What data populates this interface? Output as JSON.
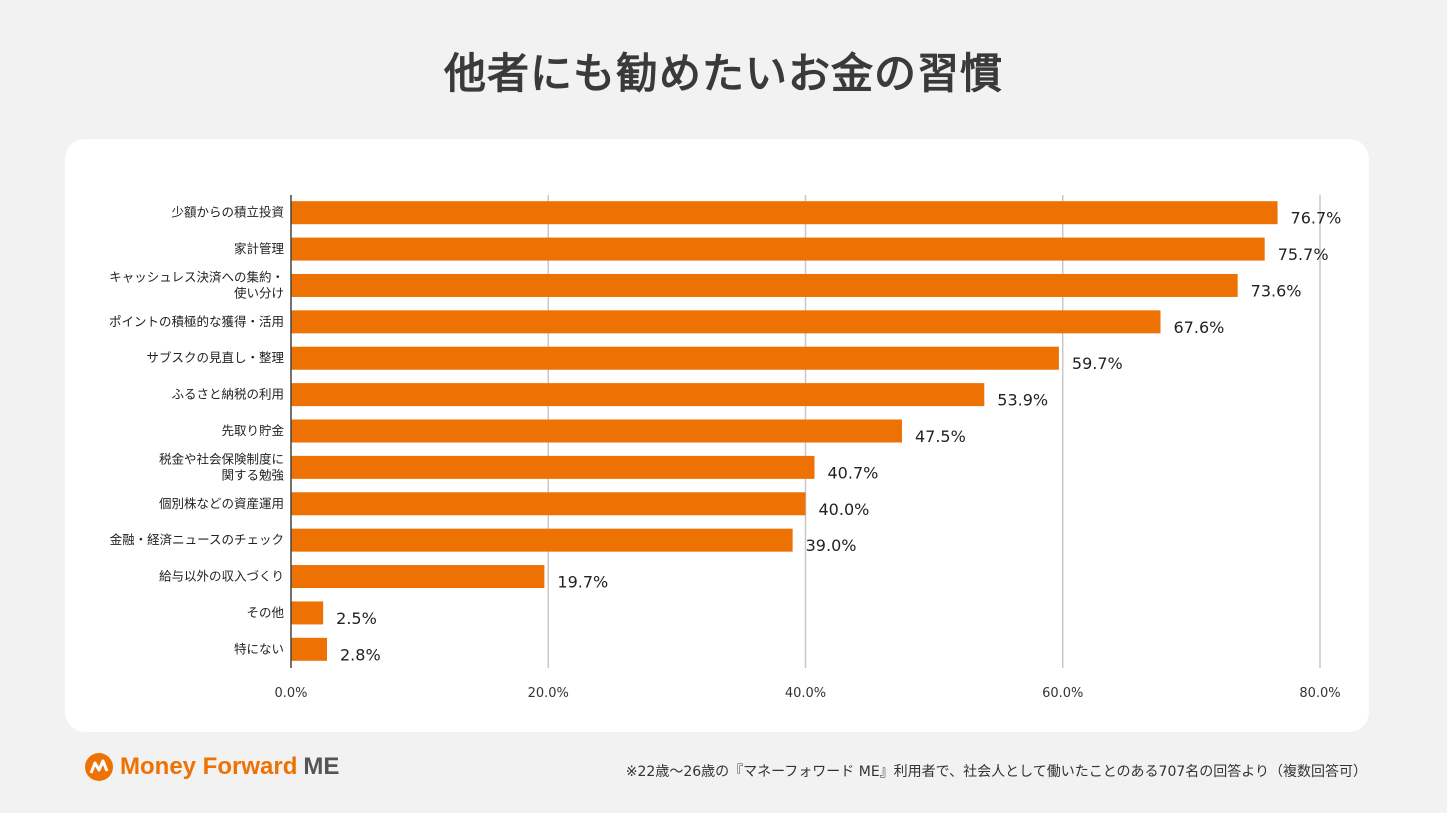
{
  "title": "他者にも勧めたいお金の習慣",
  "chart_data": {
    "type": "bar",
    "orientation": "horizontal",
    "categories": [
      "少額からの積立投資",
      "家計管理",
      "キャッシュレス決済への集約・\n使い分け",
      "ポイントの積極的な獲得・活用",
      "サブスクの見直し・整理",
      "ふるさと納税の利用",
      "先取り貯金",
      "税金や社会保険制度に\n関する勉強",
      "個別株などの資産運用",
      "金融・経済ニュースのチェック",
      "給与以外の収入づくり",
      "その他",
      "特にない"
    ],
    "values": [
      76.7,
      75.7,
      73.6,
      67.6,
      59.7,
      53.9,
      47.5,
      40.7,
      40.0,
      39.0,
      19.7,
      2.5,
      2.8
    ],
    "data_labels": [
      "76.7%",
      "75.7%",
      "73.6%",
      "67.6%",
      "59.7%",
      "53.9%",
      "47.5%",
      "40.7%",
      "40.0%",
      "39.0%",
      "19.7%",
      "2.5%",
      "2.8%"
    ],
    "xlim": [
      0,
      80
    ],
    "x_ticks": [
      "0.0%",
      "20.0%",
      "40.0%",
      "60.0%",
      "80.0%"
    ],
    "grid": "vertical",
    "bar_color": "#ee7203"
  },
  "footer": {
    "logo_brand": "Money Forward",
    "logo_suffix": "ME",
    "note": "※22歳〜26歳の『マネーフォワード ME』利用者で、社会人として働いたことのある707名の回答より（複数回答可）"
  }
}
